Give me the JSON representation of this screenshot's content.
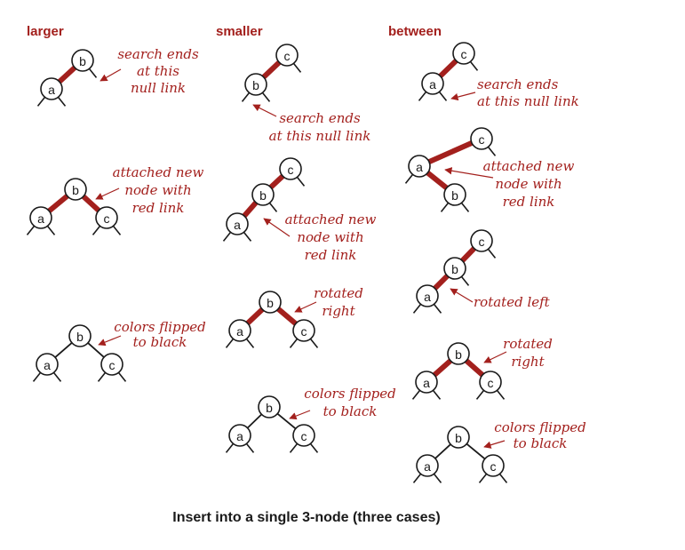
{
  "columns": [
    "larger",
    "smaller",
    "between"
  ],
  "caption": "Insert into a single 3-node (three cases)",
  "colors": {
    "red_link": "#a3201d",
    "black_link": "#1a1a1a",
    "annotation": "#a3201d"
  },
  "diagrams": [
    {
      "id": "larger-1",
      "nodes": [
        "b",
        "a"
      ],
      "red_links": [
        "a-b"
      ],
      "note": [
        "search ends",
        "at this",
        "null link"
      ]
    },
    {
      "id": "larger-2",
      "nodes": [
        "b",
        "a",
        "c"
      ],
      "red_links": [
        "a-b",
        "b-c"
      ],
      "note": [
        "attached new",
        "node with",
        "red link"
      ]
    },
    {
      "id": "larger-3",
      "nodes": [
        "b",
        "a",
        "c"
      ],
      "red_links": [],
      "note": [
        "colors flipped",
        "to black"
      ]
    },
    {
      "id": "smaller-1",
      "nodes": [
        "c",
        "b"
      ],
      "red_links": [
        "b-c"
      ],
      "note": [
        "search ends",
        "at this null link"
      ]
    },
    {
      "id": "smaller-2",
      "nodes": [
        "c",
        "b",
        "a"
      ],
      "red_links": [
        "b-c",
        "a-b"
      ],
      "note": [
        "attached new",
        "node with",
        "red link"
      ]
    },
    {
      "id": "smaller-3",
      "nodes": [
        "b",
        "a",
        "c"
      ],
      "red_links": [
        "a-b",
        "b-c"
      ],
      "note": [
        "rotated",
        "right"
      ]
    },
    {
      "id": "smaller-4",
      "nodes": [
        "b",
        "a",
        "c"
      ],
      "red_links": [],
      "note": [
        "colors flipped",
        "to black"
      ]
    },
    {
      "id": "between-1",
      "nodes": [
        "c",
        "a"
      ],
      "red_links": [
        "a-c"
      ],
      "note": [
        "search ends",
        "at this null link"
      ]
    },
    {
      "id": "between-2",
      "nodes": [
        "c",
        "a",
        "b"
      ],
      "red_links": [
        "a-c",
        "a-b"
      ],
      "note": [
        "attached new",
        "node with",
        "red link"
      ]
    },
    {
      "id": "between-3",
      "nodes": [
        "c",
        "b",
        "a"
      ],
      "red_links": [
        "b-c",
        "a-b"
      ],
      "note": [
        "rotated left"
      ]
    },
    {
      "id": "between-4",
      "nodes": [
        "b",
        "a",
        "c"
      ],
      "red_links": [
        "a-b",
        "b-c"
      ],
      "note": [
        "rotated",
        "right"
      ]
    },
    {
      "id": "between-5",
      "nodes": [
        "b",
        "a",
        "c"
      ],
      "red_links": [],
      "note": [
        "colors flipped",
        "to black"
      ]
    }
  ]
}
